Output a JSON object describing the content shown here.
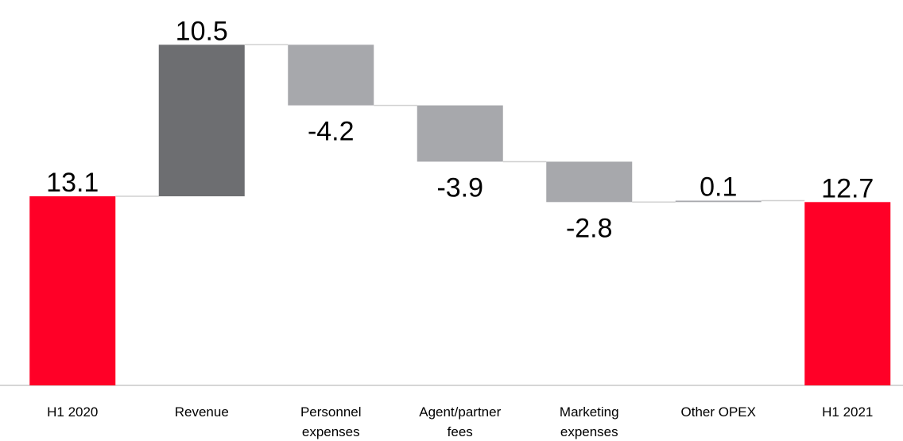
{
  "chart_data": {
    "type": "waterfall",
    "categories": [
      "H1 2020",
      "Revenue",
      "Personnel expenses",
      "Agent/partner fees",
      "Marketing expenses",
      "Other OPEX",
      "H1 2021"
    ],
    "values": [
      13.1,
      10.5,
      -4.2,
      -3.9,
      -2.8,
      0.1,
      12.7
    ],
    "colors": [
      "#ff0027",
      "#6d6e71",
      "#a7a8ac",
      "#a7a8ac",
      "#a7a8ac",
      "#a7a8ac",
      "#ff0027"
    ],
    "ylim": [
      0,
      26.7
    ]
  }
}
